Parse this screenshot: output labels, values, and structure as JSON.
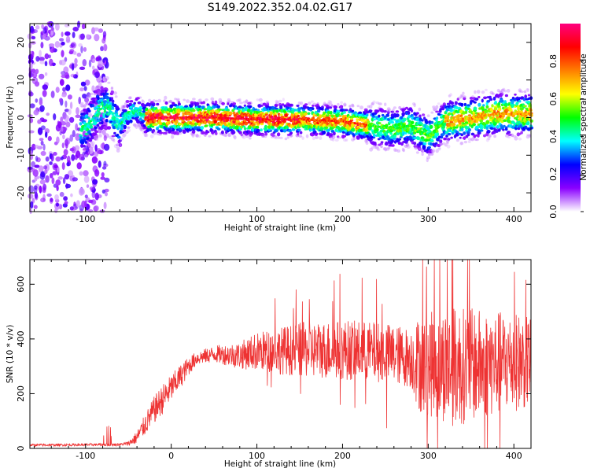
{
  "title": "S149.2022.352.04.02.G17",
  "chart_data": [
    {
      "type": "heatmap",
      "xlabel": "Height of straight line (km)",
      "ylabel": "Frequency (Hz)",
      "xlim": [
        -165,
        420
      ],
      "ylim": [
        -25,
        25
      ],
      "xticks": [
        -100,
        0,
        100,
        200,
        300,
        400
      ],
      "yticks": [
        -20,
        -10,
        0,
        10,
        20
      ],
      "colorbar": {
        "label": "Normalized spectral amplitude",
        "range": [
          0,
          1
        ],
        "ticks": [
          "0.0",
          "0.2",
          "0.4",
          "0.6",
          "0.8"
        ],
        "colormap": [
          "#ffffff",
          "#8a00ff",
          "#0000ff",
          "#00ffff",
          "#00ff00",
          "#ffff00",
          "#ff7f00",
          "#ff0000",
          "#ff007f"
        ]
      },
      "ridge": {
        "x": [
          -100,
          -85,
          -75,
          -60,
          -50,
          -40,
          -30,
          0,
          50,
          100,
          150,
          200,
          230,
          260,
          280,
          300,
          320,
          350,
          380,
          420
        ],
        "y": [
          -3,
          2,
          3,
          -2,
          1,
          2,
          0,
          0,
          0,
          -0.5,
          -0.5,
          -1,
          -2,
          -3,
          -2,
          -5,
          -1,
          0,
          1,
          1
        ]
      },
      "noise_region_x": [
        -165,
        -75
      ]
    },
    {
      "type": "line",
      "xlabel": "Height of straight line (km)",
      "ylabel": "SNR (10 * v/v)",
      "xlim": [
        -165,
        420
      ],
      "ylim": [
        0,
        690
      ],
      "xticks": [
        -100,
        0,
        100,
        200,
        300,
        400
      ],
      "yticks": [
        0,
        200,
        400,
        600
      ],
      "color": "#ee3333",
      "envelope": {
        "x": [
          -165,
          -60,
          -50,
          -40,
          -30,
          -20,
          -10,
          0,
          10,
          20,
          30,
          50,
          80,
          100,
          150,
          200,
          250,
          280,
          290,
          330,
          420
        ],
        "mean": [
          12,
          14,
          18,
          40,
          90,
          140,
          180,
          220,
          260,
          300,
          330,
          345,
          340,
          355,
          360,
          360,
          350,
          330,
          310,
          300,
          320
        ],
        "spread": [
          4,
          5,
          8,
          25,
          40,
          50,
          55,
          50,
          45,
          35,
          25,
          30,
          50,
          70,
          100,
          110,
          110,
          110,
          180,
          220,
          170
        ]
      }
    }
  ]
}
